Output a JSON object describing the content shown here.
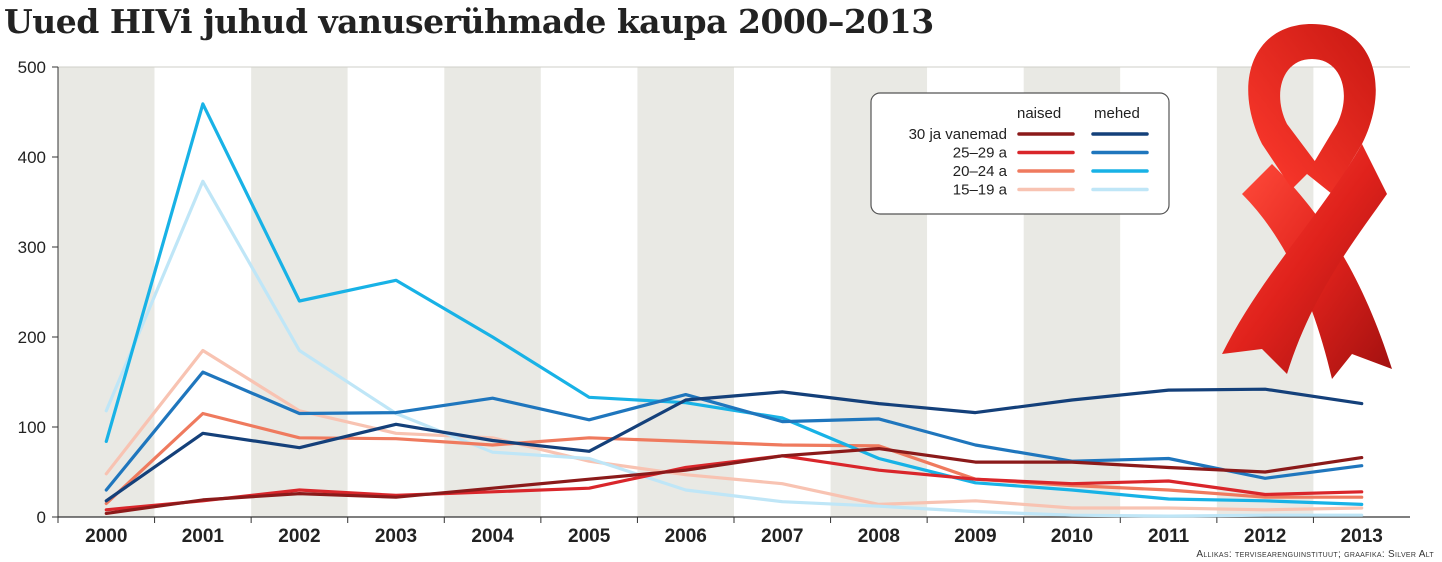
{
  "chart_data": {
    "type": "line",
    "title": "Uued HIVi juhud vanuserühmade kaupa 2000–2013",
    "x": [
      2000,
      2001,
      2002,
      2003,
      2004,
      2005,
      2006,
      2007,
      2008,
      2009,
      2010,
      2011,
      2012,
      2013
    ],
    "ylim": [
      0,
      500
    ],
    "yticks": [
      0,
      100,
      200,
      300,
      400,
      500
    ],
    "grid": "alternating vertical bands",
    "legend": {
      "placement": "top-right",
      "col_women": "naised",
      "col_men": "mehed",
      "groups": [
        "30 ja vanemad",
        "25–29 a",
        "20–24 a",
        "15–19 a"
      ]
    },
    "series": [
      {
        "name": "30 ja vanemad",
        "gender": "naised",
        "color": "#8b1a1a",
        "values": [
          4,
          19,
          26,
          22,
          32,
          42,
          52,
          68,
          76,
          61,
          61,
          55,
          50,
          66
        ]
      },
      {
        "name": "25–29 a",
        "gender": "naised",
        "color": "#d9262b",
        "values": [
          8,
          18,
          30,
          24,
          28,
          32,
          55,
          68,
          52,
          42,
          37,
          40,
          25,
          28
        ]
      },
      {
        "name": "20–24 a",
        "gender": "naised",
        "color": "#ef7a5e",
        "values": [
          15,
          115,
          88,
          87,
          80,
          88,
          84,
          80,
          79,
          42,
          35,
          30,
          22,
          22
        ]
      },
      {
        "name": "15–19 a",
        "gender": "naised",
        "color": "#f8c3b2",
        "values": [
          48,
          185,
          118,
          93,
          88,
          62,
          47,
          37,
          14,
          18,
          10,
          10,
          8,
          10
        ]
      },
      {
        "name": "30 ja vanemad",
        "gender": "mehed",
        "color": "#14407a",
        "values": [
          18,
          93,
          77,
          103,
          85,
          73,
          130,
          139,
          126,
          116,
          130,
          141,
          142,
          126
        ]
      },
      {
        "name": "25–29 a",
        "gender": "mehed",
        "color": "#1f76bd",
        "values": [
          30,
          161,
          115,
          116,
          132,
          108,
          136,
          106,
          109,
          80,
          62,
          65,
          43,
          57
        ]
      },
      {
        "name": "20–24 a",
        "gender": "mehed",
        "color": "#18b2e6",
        "values": [
          84,
          459,
          240,
          263,
          200,
          133,
          127,
          110,
          65,
          38,
          30,
          20,
          18,
          14
        ]
      },
      {
        "name": "15–19 a",
        "gender": "mehed",
        "color": "#bfe6f7",
        "values": [
          118,
          373,
          185,
          115,
          72,
          65,
          30,
          17,
          12,
          6,
          2,
          1,
          2,
          2
        ]
      }
    ],
    "source": "Allikas: tervisearenguinstituut; graafika: Silver Alt"
  }
}
